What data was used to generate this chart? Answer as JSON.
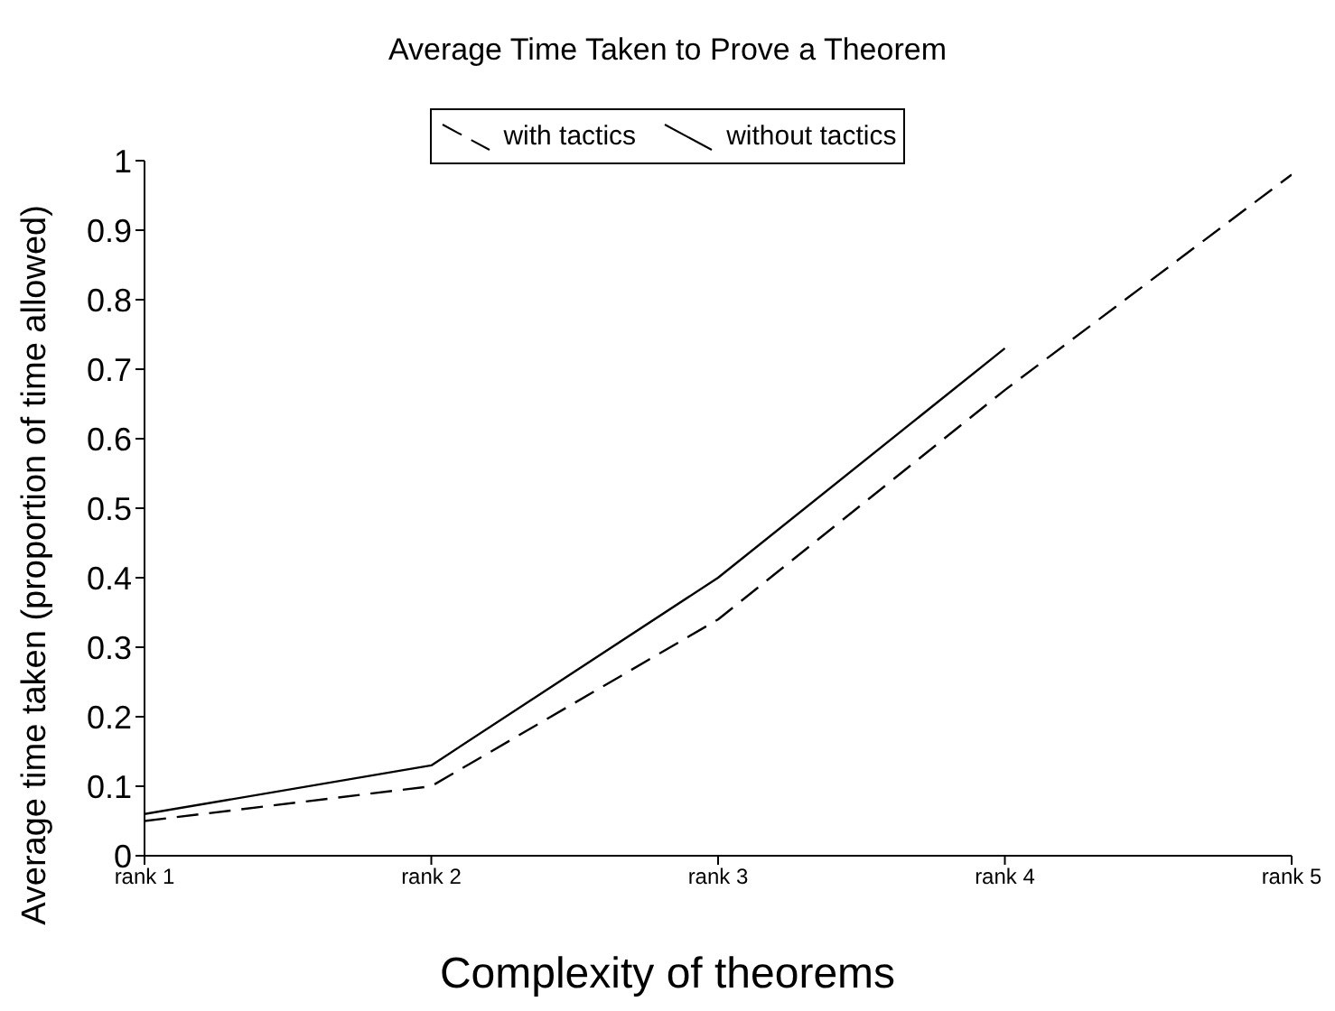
{
  "chart_data": {
    "type": "line",
    "title": "Average Time Taken to Prove a Theorem",
    "xlabel": "Complexity of theorems",
    "ylabel": "Average time taken (proportion of time allowed)",
    "categories": [
      "rank 1",
      "rank 2",
      "rank 3",
      "rank 4",
      "rank 5"
    ],
    "series": [
      {
        "name": "with tactics",
        "color": "#000000",
        "line_style": "dashed",
        "values": [
          0.05,
          0.1,
          0.34,
          0.67,
          0.98
        ]
      },
      {
        "name": "without tactics",
        "color": "#000000",
        "line_style": "solid",
        "values": [
          0.06,
          0.13,
          0.4,
          0.73,
          null
        ]
      }
    ],
    "ylim": [
      0,
      1
    ],
    "yticks": [
      0,
      0.1,
      0.2,
      0.3,
      0.4,
      0.5,
      0.6,
      0.7,
      0.8,
      0.9,
      1
    ],
    "grid": false,
    "legend": "top",
    "marker": "none"
  }
}
